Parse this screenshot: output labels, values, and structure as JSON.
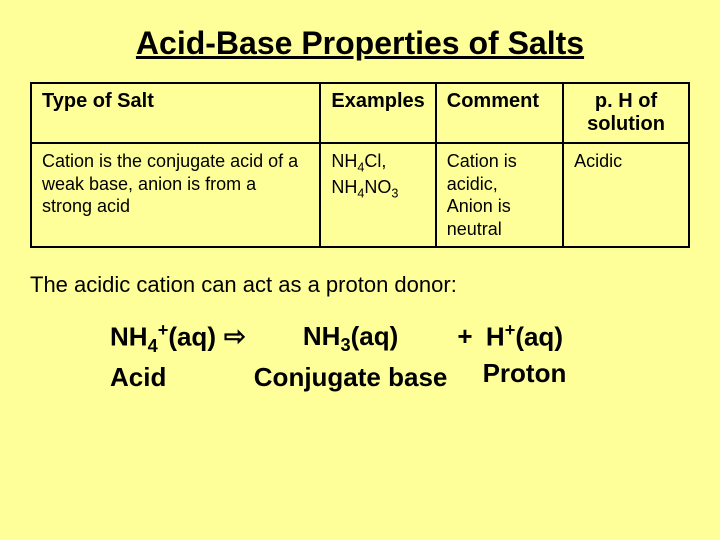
{
  "title": "Acid-Base Properties of Salts",
  "table": {
    "headers": {
      "type": "Type of Salt",
      "examples": "Examples",
      "comment": "Comment",
      "ph": "p. H of solution"
    },
    "row": {
      "type": "Cation is the conjugate acid of a weak base, anion is from a strong acid",
      "example1_a": "NH",
      "example1_b": "4",
      "example1_c": "Cl,",
      "example2_a": "NH",
      "example2_b": "4",
      "example2_c": "NO",
      "example2_d": "3",
      "comment_a": "Cation is acidic,",
      "comment_b": "Anion is neutral",
      "ph": "Acidic"
    }
  },
  "body_text": "The acidic cation can act as a proton donor:",
  "equation": {
    "nh4_a": "NH",
    "nh4_sub": "4",
    "nh4_sup": "+",
    "nh4_aq": "(aq)",
    "arrow": "⇨",
    "nh3_a": "NH",
    "nh3_sub": "3",
    "nh3_aq": "(aq)",
    "plus": "+",
    "h_a": "H",
    "h_sup": "+",
    "h_aq": "(aq)",
    "label_acid": "Acid",
    "label_conj": "Conjugate base",
    "label_proton": "Proton"
  },
  "colors": {
    "background": "#ffff99",
    "text": "#000000",
    "border": "#000000"
  }
}
